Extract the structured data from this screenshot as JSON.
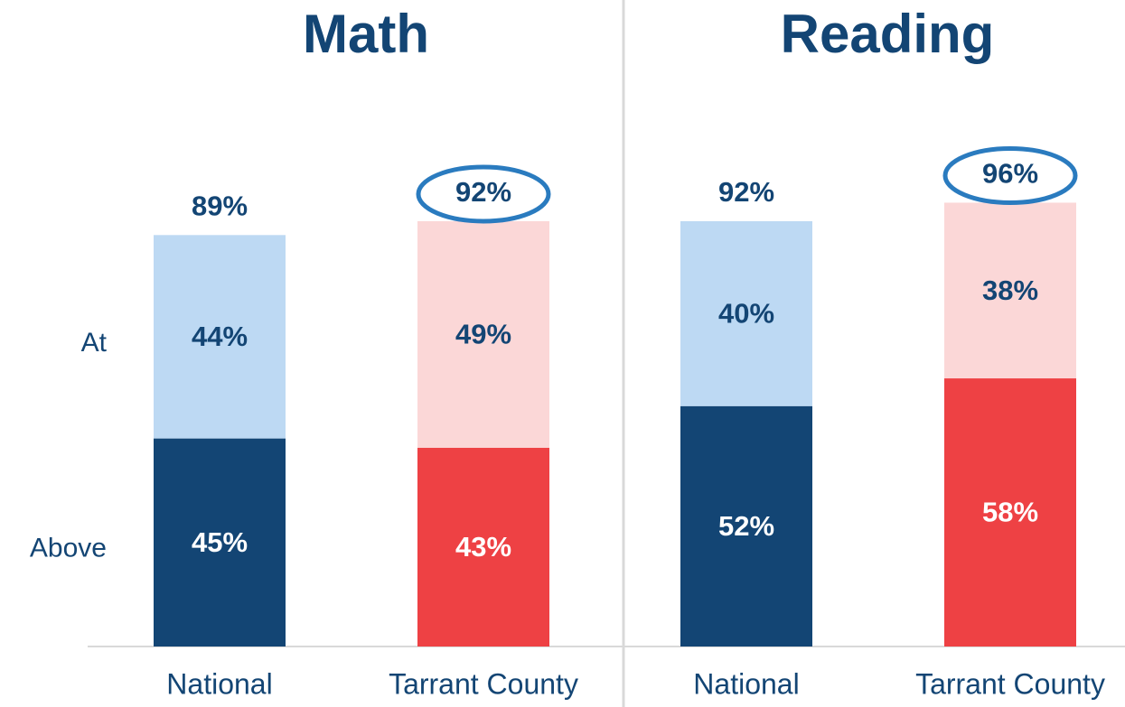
{
  "chart_data": [
    {
      "type": "stacked_bar",
      "title": "Math",
      "categories": [
        "National",
        "Tarrant County"
      ],
      "series": [
        {
          "name": "Above",
          "colors": [
            "#134574",
            "#ee4144"
          ],
          "label_color": "#ffffff",
          "values": [
            45,
            43
          ],
          "value_labels": [
            "45%",
            "43%"
          ]
        },
        {
          "name": "At",
          "colors": [
            "#bdd9f3",
            "#fbd7d7"
          ],
          "label_color": "#134574",
          "values": [
            44,
            49
          ],
          "value_labels": [
            "44%",
            "49%"
          ]
        }
      ],
      "totals": [
        89,
        92
      ],
      "total_labels": [
        "89%",
        "92%"
      ],
      "highlight": [
        1
      ]
    },
    {
      "type": "stacked_bar",
      "title": "Reading",
      "categories": [
        "National",
        "Tarrant County"
      ],
      "series": [
        {
          "colors": [
            "#134574",
            "#ee4144"
          ],
          "label_color": "#ffffff",
          "values": [
            52,
            58
          ],
          "value_labels": [
            "52%",
            "58%"
          ]
        },
        {
          "colors": [
            "#bdd9f3",
            "#fbd7d7"
          ],
          "label_color": "#134574",
          "values": [
            40,
            38
          ],
          "value_labels": [
            "40%",
            "38%"
          ]
        }
      ],
      "totals": [
        92,
        96
      ],
      "total_labels": [
        "92%",
        "96%"
      ],
      "highlight": [
        1
      ]
    }
  ]
}
